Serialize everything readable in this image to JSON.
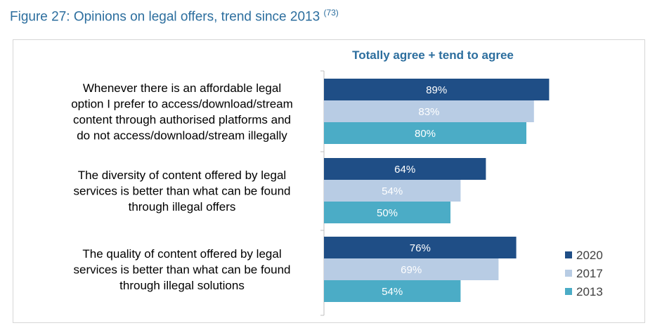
{
  "caption": {
    "text": "Figure 27: Opinions on legal offers, trend since 2013",
    "note_open": "(",
    "note_number": "73",
    "note_close": ")"
  },
  "colors": {
    "2020": "#1f4e86",
    "2017": "#b8cce4",
    "2013": "#4bacc6",
    "subtitle": "#2c6e9e",
    "axis": "#bfbfbf"
  },
  "chart_data": {
    "type": "bar",
    "orientation": "horizontal",
    "title": "Totally agree + tend to agree",
    "xlabel": "",
    "ylabel": "",
    "xlim": [
      0,
      100
    ],
    "grid": false,
    "legend_position": "bottom-right",
    "categories": [
      [
        "Whenever there is an affordable legal",
        "option I prefer to access/download/stream",
        "content through authorised platforms and",
        "do not access/download/stream illegally"
      ],
      [
        "The diversity of content offered by legal",
        "services is better than what can be found",
        "through illegal offers"
      ],
      [
        "The quality of content offered by legal",
        "services is better than what can be found",
        "through illegal solutions"
      ]
    ],
    "series": [
      {
        "name": "2020",
        "values": [
          89,
          64,
          76
        ],
        "labels": [
          "89%",
          "64%",
          "76%"
        ]
      },
      {
        "name": "2017",
        "values": [
          83,
          54,
          69
        ],
        "labels": [
          "83%",
          "54%",
          "69%"
        ]
      },
      {
        "name": "2013",
        "values": [
          80,
          50,
          54
        ],
        "labels": [
          "80%",
          "50%",
          "54%"
        ]
      }
    ]
  }
}
